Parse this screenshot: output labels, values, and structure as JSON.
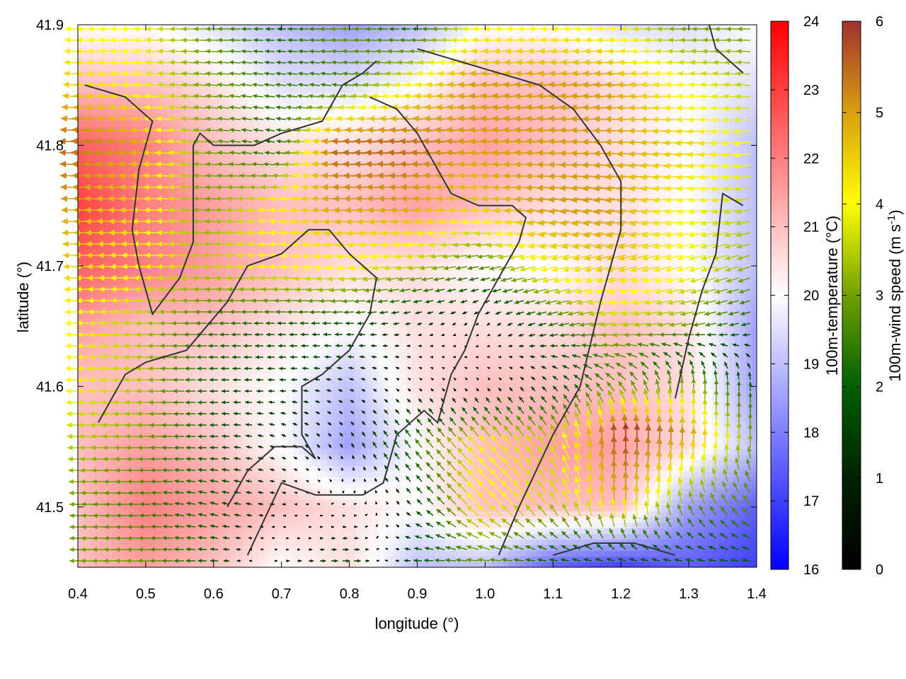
{
  "chart_data": {
    "type": "heatmap",
    "overlay": "vector",
    "xlabel": "longitude (°)",
    "ylabel": "latitude (°)",
    "xlim": [
      0.4,
      1.4
    ],
    "ylim": [
      41.45,
      41.9
    ],
    "xticks": [
      "0.4",
      "0.5",
      "0.6",
      "0.7",
      "0.8",
      "0.9",
      "1.0",
      "1.1",
      "1.2",
      "1.3",
      "1.4"
    ],
    "yticks": [
      "41.5",
      "41.6",
      "41.7",
      "41.8",
      "41.9"
    ],
    "grid": false,
    "grid_lon": [
      0.4,
      0.5,
      0.6,
      0.7,
      0.8,
      0.9,
      1.0,
      1.1,
      1.2,
      1.3,
      1.4
    ],
    "grid_lat": [
      41.9,
      41.85,
      41.8,
      41.75,
      41.7,
      41.65,
      41.6,
      41.55,
      41.5,
      41.45
    ],
    "temperature": [
      [
        20,
        20,
        19.5,
        19,
        18.5,
        19,
        20,
        20,
        19.5,
        19.5,
        20
      ],
      [
        21,
        21,
        20.5,
        19.5,
        19.5,
        20,
        21,
        21,
        20.5,
        20,
        19.5
      ],
      [
        22.5,
        22,
        21,
        20.5,
        20.5,
        21,
        21.5,
        21,
        20.5,
        20,
        19
      ],
      [
        23,
        22,
        21.5,
        21,
        21,
        21.5,
        21,
        20.5,
        20.5,
        20,
        19
      ],
      [
        22.5,
        22,
        21.5,
        21,
        20.5,
        20.5,
        20,
        20,
        20.5,
        20,
        19
      ],
      [
        21.5,
        21,
        21,
        20.5,
        20,
        20.5,
        20.5,
        20.5,
        21,
        20.5,
        18.5
      ],
      [
        21,
        21,
        20.5,
        20,
        19,
        20.5,
        21,
        21,
        21,
        20.5,
        18.5
      ],
      [
        21,
        21.5,
        21,
        20,
        18.5,
        20,
        21,
        21.5,
        21.5,
        20.5,
        19
      ],
      [
        21,
        22,
        21.5,
        21,
        20.5,
        20,
        21,
        21,
        21,
        18.5,
        17.5
      ],
      [
        21,
        21.5,
        21,
        20,
        20.5,
        19,
        19,
        17.5,
        17,
        17.5,
        17
      ]
    ],
    "wind_u": [
      [
        -4,
        -4,
        -3,
        -2,
        -3,
        -2,
        -4,
        -4,
        -4,
        -3,
        -3
      ],
      [
        -4.5,
        -4,
        -3,
        -2.5,
        -2.5,
        -4,
        -5,
        -5,
        -5,
        -4,
        -3.5
      ],
      [
        -5.5,
        -5,
        -3,
        -2,
        -5.5,
        -5.5,
        -5,
        -5,
        -5,
        -4.5,
        -4
      ],
      [
        -5,
        -4.5,
        -3,
        -4,
        -5,
        -5,
        -4.5,
        -5,
        -5,
        -4,
        -3.5
      ],
      [
        -4.5,
        -4,
        -3.5,
        -4,
        -4,
        -3.5,
        -2.5,
        -4,
        -4.5,
        -4,
        -3
      ],
      [
        -4,
        -3.5,
        -2.5,
        -2,
        -2,
        -1,
        -0.5,
        -2,
        -3.5,
        -3,
        -2
      ],
      [
        -4,
        -3.5,
        -2,
        -1.5,
        -1,
        -0.5,
        -0.3,
        -1,
        -2,
        0,
        0
      ],
      [
        -3.5,
        -3,
        -2,
        -1,
        -0.5,
        -1.5,
        -2.5,
        -2,
        0,
        0,
        0
      ],
      [
        -3,
        -2.5,
        -2,
        -1,
        0.5,
        -1,
        -3,
        -2,
        0,
        -1,
        -2
      ],
      [
        -3,
        -3,
        -2,
        1,
        2,
        -2,
        -3,
        -2,
        -2,
        -2,
        -2
      ]
    ],
    "wind_v": [
      [
        0,
        0,
        0,
        0,
        0,
        0,
        0,
        0,
        0,
        0,
        0
      ],
      [
        0.3,
        0.3,
        0.3,
        0.3,
        0.3,
        0.3,
        0.3,
        0.3,
        0.3,
        0.3,
        0.3
      ],
      [
        0.3,
        0.3,
        0.3,
        0.3,
        0.3,
        0.3,
        0.3,
        0.3,
        0,
        -0.3,
        -0.5
      ],
      [
        0,
        0,
        0,
        0,
        0,
        0,
        0,
        -0.3,
        -0.5,
        -0.5,
        -0.5
      ],
      [
        0,
        0,
        0,
        0,
        -0.5,
        -0.5,
        -0.5,
        -1,
        -1,
        -1,
        -1
      ],
      [
        0,
        0,
        0,
        0,
        0,
        -0.3,
        -0.5,
        -0.5,
        -0.5,
        -0.5,
        -0.5
      ],
      [
        0,
        0,
        0,
        0,
        0.3,
        0.5,
        0.5,
        1,
        2,
        3,
        2
      ],
      [
        0,
        0,
        0,
        0.5,
        1,
        2,
        3,
        3,
        6,
        5,
        3
      ],
      [
        0,
        0,
        0.5,
        0,
        0,
        1,
        3,
        3,
        5,
        3,
        2
      ],
      [
        0,
        0,
        0,
        0,
        0,
        0,
        0,
        0,
        0,
        0,
        0
      ]
    ],
    "contours": [
      [
        [
          0.41,
          41.85
        ],
        [
          0.47,
          41.84
        ],
        [
          0.51,
          41.82
        ],
        [
          0.49,
          41.78
        ],
        [
          0.48,
          41.73
        ],
        [
          0.49,
          41.7
        ],
        [
          0.51,
          41.66
        ],
        [
          0.55,
          41.69
        ],
        [
          0.57,
          41.72
        ],
        [
          0.57,
          41.8
        ],
        [
          0.58,
          41.81
        ],
        [
          0.6,
          41.8
        ],
        [
          0.66,
          41.8
        ],
        [
          0.7,
          41.81
        ],
        [
          0.76,
          41.82
        ],
        [
          0.79,
          41.85
        ],
        [
          0.82,
          41.86
        ],
        [
          0.84,
          41.87
        ]
      ],
      [
        [
          0.43,
          41.57
        ],
        [
          0.47,
          41.61
        ],
        [
          0.5,
          41.62
        ],
        [
          0.56,
          41.63
        ],
        [
          0.62,
          41.67
        ],
        [
          0.65,
          41.7
        ],
        [
          0.7,
          41.71
        ],
        [
          0.74,
          41.73
        ],
        [
          0.77,
          41.73
        ],
        [
          0.8,
          41.71
        ],
        [
          0.84,
          41.69
        ],
        [
          0.83,
          41.66
        ],
        [
          0.8,
          41.63
        ],
        [
          0.76,
          41.61
        ],
        [
          0.73,
          41.6
        ],
        [
          0.73,
          41.56
        ],
        [
          0.75,
          41.54
        ],
        [
          0.73,
          41.55
        ],
        [
          0.69,
          41.55
        ],
        [
          0.65,
          41.53
        ],
        [
          0.62,
          41.5
        ]
      ],
      [
        [
          0.65,
          41.46
        ],
        [
          0.7,
          41.52
        ],
        [
          0.75,
          41.51
        ],
        [
          0.82,
          41.51
        ],
        [
          0.85,
          41.52
        ],
        [
          0.87,
          41.56
        ],
        [
          0.91,
          41.58
        ],
        [
          0.93,
          41.57
        ],
        [
          0.95,
          41.61
        ],
        [
          0.97,
          41.63
        ],
        [
          0.99,
          41.66
        ],
        [
          1.02,
          41.69
        ],
        [
          1.05,
          41.72
        ],
        [
          1.06,
          41.74
        ],
        [
          1.04,
          41.75
        ],
        [
          0.99,
          41.75
        ],
        [
          0.95,
          41.76
        ],
        [
          0.9,
          41.81
        ],
        [
          0.87,
          41.83
        ],
        [
          0.83,
          41.84
        ]
      ],
      [
        [
          1.02,
          41.46
        ],
        [
          1.05,
          41.5
        ],
        [
          1.1,
          41.56
        ],
        [
          1.14,
          41.6
        ],
        [
          1.17,
          41.67
        ],
        [
          1.2,
          41.73
        ],
        [
          1.2,
          41.77
        ],
        [
          1.17,
          41.8
        ],
        [
          1.13,
          41.83
        ],
        [
          1.08,
          41.85
        ],
        [
          1.02,
          41.86
        ],
        [
          0.96,
          41.87
        ],
        [
          0.9,
          41.88
        ]
      ],
      [
        [
          1.1,
          41.46
        ],
        [
          1.16,
          41.47
        ],
        [
          1.22,
          41.47
        ],
        [
          1.28,
          41.46
        ]
      ],
      [
        [
          1.28,
          41.59
        ],
        [
          1.3,
          41.64
        ],
        [
          1.32,
          41.68
        ],
        [
          1.34,
          41.71
        ],
        [
          1.35,
          41.76
        ],
        [
          1.38,
          41.75
        ]
      ],
      [
        [
          1.33,
          41.9
        ],
        [
          1.34,
          41.88
        ],
        [
          1.38,
          41.86
        ]
      ]
    ],
    "colorbars": [
      {
        "label": "100m-temperature (°C)",
        "range": [
          16,
          24
        ],
        "ticks": [
          "16",
          "17",
          "18",
          "19",
          "20",
          "21",
          "22",
          "23",
          "24"
        ],
        "colors": [
          "#0000ff",
          "#ffffff",
          "#ff0000"
        ]
      },
      {
        "label": "100m-wind speed (m s",
        "label_sup": "-1",
        "label_end": ")",
        "range": [
          0,
          6
        ],
        "ticks": [
          "0",
          "1",
          "2",
          "3",
          "4",
          "5",
          "6"
        ],
        "colors": [
          "#000000",
          "#002200",
          "#006000",
          "#70a000",
          "#ffff00",
          "#d8a010",
          "#a03030"
        ]
      }
    ]
  }
}
